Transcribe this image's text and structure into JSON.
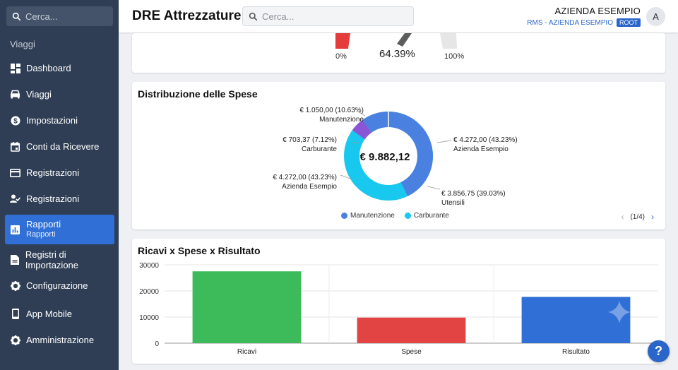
{
  "sidebar": {
    "search_placeholder": "Cerca...",
    "section_label": "Viaggi",
    "items": [
      {
        "label": "Dashboard",
        "icon": "dashboard-icon"
      },
      {
        "label": "Viaggi",
        "icon": "car-icon"
      },
      {
        "label": "Impostazioni",
        "icon": "dollar-gear-icon"
      },
      {
        "label": "Conti da Ricevere",
        "icon": "calendar-icon"
      },
      {
        "label": "Registrazioni",
        "icon": "credit-card-icon"
      },
      {
        "label": "Registrazioni",
        "icon": "user-check-icon"
      },
      {
        "label": "Rapporti",
        "sublabel": "Rapporti",
        "icon": "bar-chart-icon",
        "active": true
      },
      {
        "label": "Registri di Importazione",
        "icon": "document-icon"
      },
      {
        "label": "Configurazione",
        "icon": "gear-icon"
      },
      {
        "label": "App Mobile",
        "icon": "phone-icon"
      },
      {
        "label": "Amministrazione",
        "icon": "gear-icon"
      }
    ]
  },
  "header": {
    "title": "DRE Attrezzature",
    "search_placeholder": "Cerca...",
    "company_name": "AZIENDA ESEMPIO",
    "company_sub": "RMS - AZIENDA ESEMPIO",
    "badge": "ROOT",
    "avatar": "A"
  },
  "gauge": {
    "min_label": "0%",
    "value_label": "64.39%",
    "max_label": "100%",
    "value": 64.39
  },
  "expenses": {
    "title": "Distribuzione delle Spese",
    "total": "€ 9.882,12",
    "slices": [
      {
        "value_label": "€ 4.272,00 (43.23%)",
        "name": "Azienda Esempio",
        "value": 43.23,
        "color": "#4a80e0"
      },
      {
        "value_label": "€ 3.856,75 (39.03%)",
        "name": "Utensili",
        "value": 39.03,
        "color": "#19c8ee"
      },
      {
        "value_label": "€ 4.272,00 (43.23%)",
        "name": "Azienda Esempio",
        "value": 43.23,
        "color": "#19c8ee"
      },
      {
        "value_label": "€ 703,37 (7.12%)",
        "name": "Carburante",
        "value": 7.12,
        "color": "#8a56d6"
      },
      {
        "value_label": "€ 1.050,00 (10.63%)",
        "name": "Manutenzione",
        "value": 10.63,
        "color": "#4a80e0"
      }
    ],
    "legend": [
      {
        "label": "Manutenzione",
        "color": "#4a80e0"
      },
      {
        "label": "Carburante",
        "color": "#19c8ee"
      }
    ],
    "pager": "(1/4)"
  },
  "chart_data": {
    "type": "bar",
    "title": "Ricavi x Spese x Risultato",
    "categories": [
      "Ricavi",
      "Spese",
      "Risultato"
    ],
    "values": [
      27500,
      9800,
      17700
    ],
    "colors": [
      "#3dbb5b",
      "#e24343",
      "#2f6fd6"
    ],
    "ylim": [
      0,
      30000
    ],
    "yticks": [
      "30000",
      "20000",
      "10000",
      "0"
    ],
    "grid": true
  },
  "help_label": "?"
}
